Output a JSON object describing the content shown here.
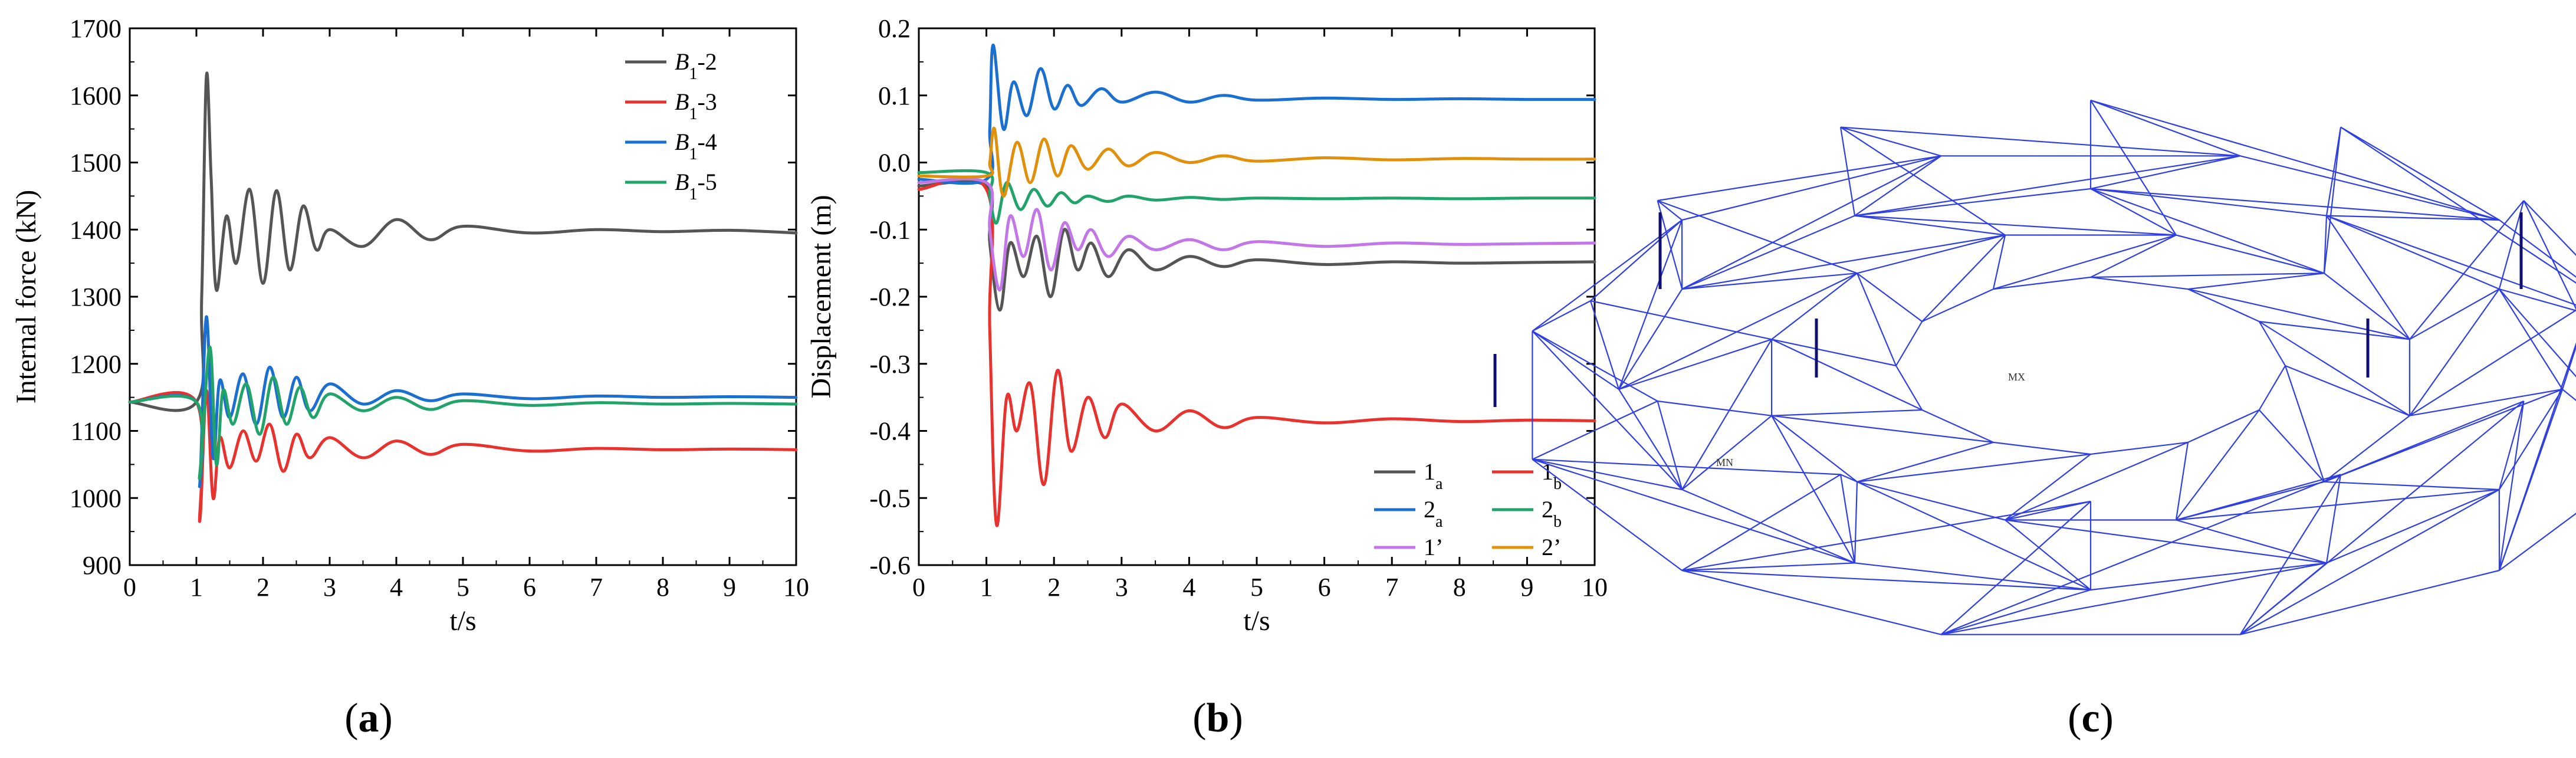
{
  "panels": [
    {
      "id": "a",
      "letter": "a"
    },
    {
      "id": "b",
      "letter": "b"
    },
    {
      "id": "c",
      "letter": "c"
    }
  ],
  "chart_data": [
    {
      "type": "line",
      "panel": "a",
      "xlabel": "t/s",
      "ylabel": "Internal force (kN)",
      "xlim": [
        0,
        10
      ],
      "ylim": [
        900,
        1700
      ],
      "xticks": [
        0,
        1,
        2,
        3,
        4,
        5,
        6,
        7,
        8,
        9,
        10
      ],
      "yticks": [
        900,
        1000,
        1100,
        1200,
        1300,
        1400,
        1500,
        1600,
        1700
      ],
      "series": [
        {
          "label": "B",
          "sub": "1",
          "suffix": "-2",
          "color": "#555555",
          "x": [
            0,
            1.0,
            1.08,
            1.15,
            1.22,
            1.3,
            1.45,
            1.6,
            1.8,
            2.0,
            2.2,
            2.4,
            2.6,
            2.8,
            3.0,
            3.5,
            4.0,
            4.5,
            5.0,
            6.0,
            7.0,
            8.0,
            9.0,
            10.0
          ],
          "y": [
            1143,
            1143,
            1300,
            1628,
            1480,
            1310,
            1420,
            1350,
            1460,
            1320,
            1458,
            1340,
            1435,
            1370,
            1400,
            1375,
            1415,
            1385,
            1405,
            1395,
            1400,
            1397,
            1399,
            1395
          ]
        },
        {
          "label": "B",
          "sub": "1",
          "suffix": "-3",
          "color": "#e8322e",
          "x": [
            0,
            1.0,
            1.05,
            1.15,
            1.25,
            1.35,
            1.5,
            1.7,
            1.9,
            2.1,
            2.3,
            2.5,
            2.7,
            3.0,
            3.5,
            4.0,
            4.5,
            5.0,
            6.0,
            7.0,
            8.0,
            9.0,
            10.0
          ],
          "y": [
            1143,
            1143,
            965,
            1160,
            1000,
            1090,
            1045,
            1100,
            1055,
            1110,
            1040,
            1095,
            1060,
            1090,
            1060,
            1085,
            1065,
            1080,
            1070,
            1074,
            1072,
            1073,
            1072
          ]
        },
        {
          "label": "B",
          "sub": "1",
          "suffix": "-4",
          "color": "#1a6fd1",
          "x": [
            0,
            1.0,
            1.05,
            1.15,
            1.25,
            1.35,
            1.5,
            1.7,
            1.9,
            2.1,
            2.3,
            2.5,
            2.7,
            3.0,
            3.5,
            4.0,
            4.5,
            5.0,
            6.0,
            7.0,
            8.0,
            9.0,
            10.0
          ],
          "y": [
            1143,
            1143,
            1020,
            1270,
            1060,
            1175,
            1120,
            1185,
            1110,
            1195,
            1120,
            1180,
            1130,
            1170,
            1140,
            1160,
            1145,
            1155,
            1148,
            1152,
            1150,
            1151,
            1150
          ]
        },
        {
          "label": "B",
          "sub": "1",
          "suffix": "-5",
          "color": "#21a36a",
          "x": [
            0,
            1.0,
            1.05,
            1.2,
            1.3,
            1.4,
            1.55,
            1.75,
            1.95,
            2.15,
            2.35,
            2.55,
            2.75,
            3.0,
            3.5,
            4.0,
            4.5,
            5.0,
            6.0,
            7.0,
            8.0,
            9.0,
            10.0
          ],
          "y": [
            1143,
            1143,
            1030,
            1225,
            1050,
            1160,
            1110,
            1170,
            1095,
            1180,
            1110,
            1165,
            1120,
            1155,
            1130,
            1150,
            1132,
            1145,
            1138,
            1142,
            1140,
            1141,
            1140
          ]
        }
      ]
    },
    {
      "type": "line",
      "panel": "b",
      "xlabel": "t/s",
      "ylabel": "Displacement (m)",
      "xlim": [
        0,
        10
      ],
      "ylim": [
        -0.6,
        0.2
      ],
      "xticks": [
        0,
        1,
        2,
        3,
        4,
        5,
        6,
        7,
        8,
        9,
        10
      ],
      "yticks": [
        -0.6,
        -0.5,
        -0.4,
        -0.3,
        -0.2,
        -0.1,
        0.0,
        0.1,
        0.2
      ],
      "series": [
        {
          "label": "1",
          "sub": "a",
          "suffix": "",
          "color": "#555555",
          "x": [
            0,
            1.0,
            1.05,
            1.2,
            1.35,
            1.55,
            1.75,
            1.95,
            2.15,
            2.35,
            2.55,
            2.8,
            3.1,
            3.5,
            4.0,
            4.5,
            5.0,
            6.0,
            7.0,
            8.0,
            9.0,
            10.0
          ],
          "y": [
            -0.035,
            -0.035,
            -0.12,
            -0.22,
            -0.12,
            -0.17,
            -0.11,
            -0.2,
            -0.1,
            -0.16,
            -0.12,
            -0.17,
            -0.13,
            -0.16,
            -0.14,
            -0.155,
            -0.145,
            -0.152,
            -0.148,
            -0.15,
            -0.149,
            -0.148
          ]
        },
        {
          "label": "1",
          "sub": "b",
          "suffix": "",
          "color": "#e8322e",
          "x": [
            0,
            1.0,
            1.05,
            1.15,
            1.3,
            1.45,
            1.65,
            1.85,
            2.05,
            2.25,
            2.5,
            2.75,
            3.0,
            3.5,
            4.0,
            4.5,
            5.0,
            6.0,
            7.0,
            8.0,
            9.0,
            10.0
          ],
          "y": [
            -0.04,
            -0.04,
            -0.25,
            -0.54,
            -0.35,
            -0.4,
            -0.33,
            -0.48,
            -0.31,
            -0.43,
            -0.35,
            -0.41,
            -0.36,
            -0.4,
            -0.37,
            -0.395,
            -0.38,
            -0.388,
            -0.382,
            -0.386,
            -0.384,
            -0.385
          ]
        },
        {
          "label": "2",
          "sub": "a",
          "suffix": "",
          "color": "#1a6fd1",
          "x": [
            0,
            1.0,
            1.05,
            1.1,
            1.25,
            1.4,
            1.6,
            1.8,
            2.0,
            2.2,
            2.4,
            2.7,
            3.0,
            3.5,
            4.0,
            4.5,
            5.0,
            6.0,
            7.0,
            8.0,
            9.0,
            10.0
          ],
          "y": [
            -0.025,
            -0.025,
            0.05,
            0.175,
            0.05,
            0.12,
            0.07,
            0.14,
            0.08,
            0.115,
            0.085,
            0.11,
            0.09,
            0.105,
            0.09,
            0.1,
            0.093,
            0.096,
            0.094,
            0.095,
            0.094,
            0.094
          ]
        },
        {
          "label": "2",
          "sub": "b",
          "suffix": "",
          "color": "#21a36a",
          "x": [
            0,
            1.0,
            1.05,
            1.15,
            1.3,
            1.5,
            1.7,
            1.9,
            2.1,
            2.3,
            2.5,
            2.8,
            3.1,
            3.5,
            4.0,
            4.5,
            5.0,
            6.0,
            7.0,
            8.0,
            9.0,
            10.0
          ],
          "y": [
            -0.015,
            -0.015,
            -0.05,
            -0.09,
            -0.03,
            -0.07,
            -0.04,
            -0.065,
            -0.045,
            -0.06,
            -0.05,
            -0.058,
            -0.05,
            -0.056,
            -0.052,
            -0.055,
            -0.053,
            -0.054,
            -0.053,
            -0.054,
            -0.053,
            -0.053
          ]
        },
        {
          "label": "1",
          "sub": "",
          "suffix": "’",
          "color": "#c276e8",
          "x": [
            0,
            1.0,
            1.05,
            1.2,
            1.35,
            1.55,
            1.75,
            1.95,
            2.15,
            2.35,
            2.55,
            2.8,
            3.1,
            3.5,
            4.0,
            4.5,
            5.0,
            6.0,
            7.0,
            8.0,
            9.0,
            10.0
          ],
          "y": [
            -0.03,
            -0.03,
            -0.1,
            -0.19,
            -0.08,
            -0.14,
            -0.07,
            -0.16,
            -0.09,
            -0.13,
            -0.1,
            -0.14,
            -0.11,
            -0.13,
            -0.115,
            -0.13,
            -0.118,
            -0.125,
            -0.12,
            -0.122,
            -0.121,
            -0.12
          ]
        },
        {
          "label": "2",
          "sub": "",
          "suffix": "’",
          "color": "#e0900a",
          "x": [
            0,
            1.0,
            1.05,
            1.12,
            1.25,
            1.45,
            1.65,
            1.85,
            2.05,
            2.25,
            2.5,
            2.8,
            3.1,
            3.5,
            4.0,
            4.5,
            5.0,
            6.0,
            7.0,
            8.0,
            9.0,
            10.0
          ],
          "y": [
            -0.02,
            -0.02,
            0.0,
            0.05,
            -0.05,
            0.03,
            -0.03,
            0.035,
            -0.02,
            0.025,
            -0.01,
            0.02,
            -0.005,
            0.015,
            0.0,
            0.01,
            0.002,
            0.007,
            0.004,
            0.006,
            0.005,
            0.005
          ]
        }
      ]
    }
  ],
  "structure": {
    "line_color": "#2f3fe0",
    "tag_max": "MX",
    "tag_min": "MN"
  }
}
